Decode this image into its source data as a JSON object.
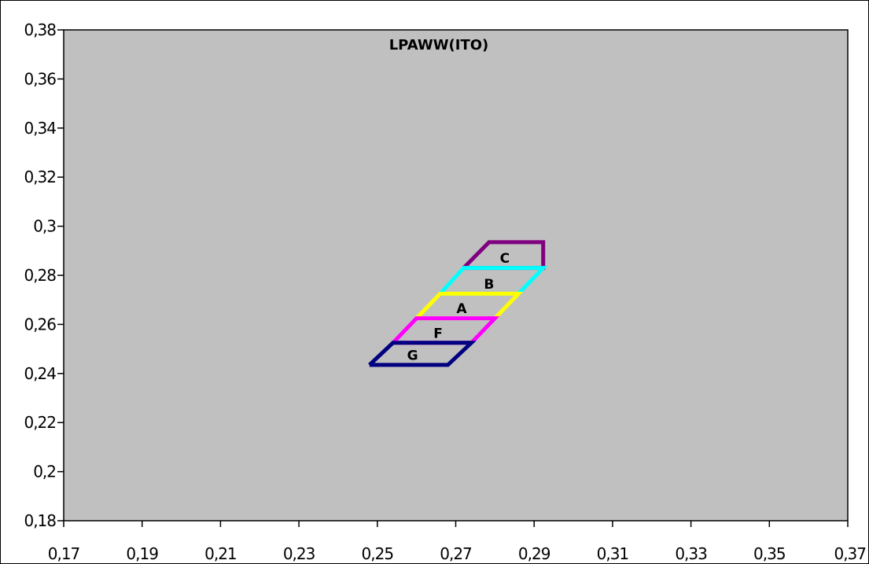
{
  "chart_data": {
    "type": "line",
    "title": "LPAWW(ITO)",
    "xlabel": "",
    "ylabel": "",
    "xlim": [
      0.17,
      0.37
    ],
    "ylim": [
      0.18,
      0.38
    ],
    "x_ticks": [
      "0,17",
      "0,19",
      "0,21",
      "0,23",
      "0,25",
      "0,27",
      "0,29",
      "0,31",
      "0,33",
      "0,35",
      "0,37"
    ],
    "y_ticks": [
      "0,18",
      "0,2",
      "0,22",
      "0,24",
      "0,26",
      "0,28",
      "0,3",
      "0,32",
      "0,34",
      "0,36",
      "0,38"
    ],
    "grid": false,
    "plot_background": "#c0c0c0",
    "series": [
      {
        "label": "C",
        "color": "#800080",
        "points": [
          [
            0.272,
            0.283
          ],
          [
            0.2785,
            0.2935
          ],
          [
            0.2923,
            0.2935
          ],
          [
            0.2923,
            0.283
          ],
          [
            0.272,
            0.283
          ]
        ],
        "label_at": [
          0.2825,
          0.287
        ]
      },
      {
        "label": "B",
        "color": "#00ffff",
        "points": [
          [
            0.266,
            0.2725
          ],
          [
            0.272,
            0.283
          ],
          [
            0.2923,
            0.283
          ],
          [
            0.286,
            0.2725
          ],
          [
            0.266,
            0.2725
          ]
        ],
        "label_at": [
          0.2785,
          0.2765
        ]
      },
      {
        "label": "A",
        "color": "#ffff00",
        "points": [
          [
            0.26,
            0.2625
          ],
          [
            0.266,
            0.2725
          ],
          [
            0.286,
            0.2725
          ],
          [
            0.28,
            0.2625
          ],
          [
            0.26,
            0.2625
          ]
        ],
        "label_at": [
          0.2715,
          0.2665
        ]
      },
      {
        "label": "F",
        "color": "#ff00ff",
        "points": [
          [
            0.254,
            0.2525
          ],
          [
            0.26,
            0.2625
          ],
          [
            0.28,
            0.2625
          ],
          [
            0.274,
            0.2525
          ],
          [
            0.254,
            0.2525
          ]
        ],
        "label_at": [
          0.2655,
          0.2565
        ]
      },
      {
        "label": "G",
        "color": "#000080",
        "points": [
          [
            0.248,
            0.2435
          ],
          [
            0.254,
            0.2525
          ],
          [
            0.274,
            0.2525
          ],
          [
            0.268,
            0.2435
          ],
          [
            0.248,
            0.2435
          ]
        ],
        "label_at": [
          0.259,
          0.2475
        ]
      }
    ]
  }
}
